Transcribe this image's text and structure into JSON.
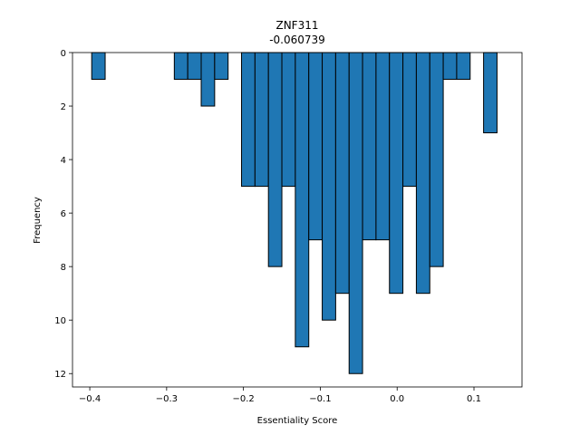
{
  "chart_data": {
    "type": "bar",
    "title": "ZNF311",
    "subtitle": "-0.060739",
    "xlabel": "Essentiality Score",
    "ylabel": "Frequency",
    "xlim": [
      -0.4225,
      0.1625
    ],
    "ylim": [
      12.5,
      0
    ],
    "y_inverted": true,
    "grid": false,
    "bar_color": "#1f77b4",
    "edge_color": "#000000",
    "bin_width": 0.0175,
    "bins": [
      {
        "left": -0.3975,
        "value": 1
      },
      {
        "left": -0.29,
        "value": 1
      },
      {
        "left": -0.2725,
        "value": 1
      },
      {
        "left": -0.255,
        "value": 2
      },
      {
        "left": -0.2375,
        "value": 1
      },
      {
        "left": -0.2025,
        "value": 5
      },
      {
        "left": -0.185,
        "value": 5
      },
      {
        "left": -0.1675,
        "value": 8
      },
      {
        "left": -0.15,
        "value": 5
      },
      {
        "left": -0.1325,
        "value": 11
      },
      {
        "left": -0.115,
        "value": 7
      },
      {
        "left": -0.0975,
        "value": 10
      },
      {
        "left": -0.08,
        "value": 9
      },
      {
        "left": -0.0625,
        "value": 12
      },
      {
        "left": -0.045,
        "value": 7
      },
      {
        "left": -0.0275,
        "value": 7
      },
      {
        "left": -0.01,
        "value": 9
      },
      {
        "left": 0.0075,
        "value": 5
      },
      {
        "left": 0.025,
        "value": 9
      },
      {
        "left": 0.0425,
        "value": 8
      },
      {
        "left": 0.06,
        "value": 1
      },
      {
        "left": 0.0775,
        "value": 1
      },
      {
        "left": 0.1125,
        "value": 3
      }
    ],
    "x_ticks": [
      {
        "value": -0.4,
        "label": "−0.4"
      },
      {
        "value": -0.3,
        "label": "−0.3"
      },
      {
        "value": -0.2,
        "label": "−0.2"
      },
      {
        "value": -0.1,
        "label": "−0.1"
      },
      {
        "value": 0.0,
        "label": "0.0"
      },
      {
        "value": 0.1,
        "label": "0.1"
      }
    ],
    "y_ticks": [
      {
        "value": 0,
        "label": "0"
      },
      {
        "value": 2,
        "label": "2"
      },
      {
        "value": 4,
        "label": "4"
      },
      {
        "value": 6,
        "label": "6"
      },
      {
        "value": 8,
        "label": "8"
      },
      {
        "value": 10,
        "label": "10"
      },
      {
        "value": 12,
        "label": "12"
      }
    ]
  }
}
